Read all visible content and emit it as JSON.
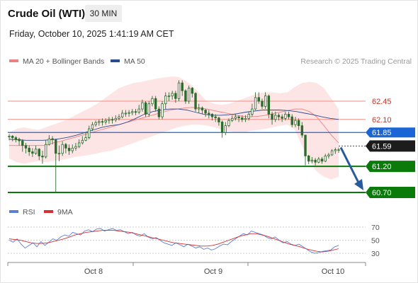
{
  "header": {
    "instrument": "Crude Oil (WTI)",
    "timeframe": "30 MIN",
    "datetime": "Friday, October 10, 2025 1:41:19 AM CET"
  },
  "legend": {
    "bb": "MA 20 + Bollinger Bands",
    "ma50": "MA 50",
    "credit": "Research © 2025 Trading Central",
    "rsi": "RSI",
    "ma9": "9MA"
  },
  "colors": {
    "bb_line": "#f08080",
    "bb_fill": "#fde0e0",
    "ma50": "#2a4b8d",
    "support": "#0a7a0a",
    "resistance": "#f28b82",
    "pivot": "#1a66d6",
    "arrow": "#2a5a9e",
    "candle": "#2e6b2e",
    "rsi": "#5a7fd6",
    "ma9": "#d83030",
    "axis": "#888888"
  },
  "chart_data": [
    {
      "type": "candlestick",
      "title": "Crude Oil (WTI)",
      "timeframe": "30 MIN",
      "x_labels": [
        "Oct 8",
        "Oct 9",
        "Oct 10"
      ],
      "ylim": [
        60.6,
        63.05
      ],
      "levels": [
        {
          "label": "62.45",
          "value": 62.45,
          "kind": "resistance"
        },
        {
          "label": "62.10",
          "value": 62.1,
          "kind": "resistance"
        },
        {
          "label": "61.85",
          "value": 61.85,
          "kind": "pivot"
        },
        {
          "label": "61.59",
          "value": 61.59,
          "kind": "last"
        },
        {
          "label": "61.20",
          "value": 61.2,
          "kind": "support"
        },
        {
          "label": "60.70",
          "value": 60.7,
          "kind": "support"
        }
      ],
      "last_price": 61.59,
      "forecast_arrow": {
        "from": 61.59,
        "to": 60.7,
        "direction": "down"
      },
      "series": [
        {
          "name": "price",
          "close": [
            61.78,
            61.75,
            61.72,
            61.69,
            61.6,
            61.55,
            61.48,
            61.45,
            61.53,
            61.4,
            61.38,
            61.62,
            61.73,
            61.71,
            61.45,
            61.45,
            61.62,
            61.55,
            61.5,
            61.55,
            61.58,
            61.65,
            61.7,
            61.75,
            61.92,
            62.0,
            62.04,
            62.06,
            62.05,
            62.08,
            62.1,
            62.09,
            62.12,
            62.15,
            62.22,
            62.22,
            62.23,
            62.25,
            62.24,
            62.3,
            62.42,
            62.2,
            62.4,
            62.5,
            62.3,
            62.15,
            62.4,
            62.55,
            62.55,
            62.6,
            62.5,
            62.8,
            62.65,
            62.45,
            62.7,
            62.6,
            62.3,
            62.32,
            62.28,
            62.22,
            62.2,
            62.15,
            62.13,
            62.05,
            61.85,
            61.98,
            62.08,
            62.12,
            62.15,
            62.13,
            62.1,
            62.12,
            62.2,
            62.3,
            62.52,
            62.45,
            62.35,
            62.55,
            62.2,
            62.1,
            62.18,
            62.15,
            62.12,
            62.2,
            62.15,
            62.0,
            62.08,
            61.98,
            61.8,
            61.4,
            61.3,
            61.32,
            61.28,
            61.34,
            61.3,
            61.4,
            61.42,
            61.5,
            61.52,
            61.52
          ],
          "high": [
            61.82,
            61.8,
            61.78,
            61.75,
            61.72,
            61.65,
            61.6,
            61.55,
            61.6,
            61.55,
            61.5,
            61.7,
            61.8,
            61.78,
            61.72,
            61.6,
            61.68,
            61.65,
            61.62,
            61.62,
            61.65,
            61.72,
            61.78,
            61.85,
            61.98,
            62.05,
            62.08,
            62.1,
            62.12,
            62.12,
            62.15,
            62.15,
            62.18,
            62.2,
            62.28,
            62.28,
            62.28,
            62.3,
            62.3,
            62.38,
            62.48,
            62.45,
            62.45,
            62.55,
            62.55,
            62.35,
            62.45,
            62.62,
            62.62,
            62.65,
            62.65,
            62.85,
            62.85,
            62.68,
            62.75,
            62.72,
            62.62,
            62.4,
            62.35,
            62.3,
            62.28,
            62.22,
            62.2,
            62.15,
            62.08,
            62.05,
            62.12,
            62.18,
            62.2,
            62.18,
            62.18,
            62.18,
            62.25,
            62.4,
            62.62,
            62.62,
            62.5,
            62.62,
            62.58,
            62.25,
            62.25,
            62.22,
            62.2,
            62.25,
            62.25,
            62.2,
            62.15,
            62.12,
            62.05,
            61.8,
            61.42,
            61.38,
            61.36,
            61.38,
            61.38,
            61.44,
            61.46,
            61.53,
            61.56,
            61.56
          ],
          "low": [
            61.7,
            61.68,
            61.66,
            61.6,
            61.48,
            61.45,
            61.4,
            61.38,
            61.42,
            61.32,
            61.25,
            61.35,
            61.6,
            61.62,
            60.7,
            61.3,
            61.4,
            61.45,
            61.42,
            61.45,
            61.5,
            61.55,
            61.62,
            61.68,
            61.72,
            61.88,
            61.96,
            61.98,
            61.98,
            62.0,
            62.02,
            62.02,
            62.05,
            62.08,
            62.12,
            62.15,
            62.15,
            62.18,
            62.18,
            62.2,
            62.25,
            62.15,
            62.15,
            62.35,
            62.25,
            62.1,
            62.1,
            62.3,
            62.45,
            62.48,
            62.42,
            62.45,
            62.55,
            62.4,
            62.4,
            62.52,
            62.25,
            62.22,
            62.2,
            62.15,
            62.12,
            62.08,
            62.05,
            61.98,
            61.75,
            61.8,
            61.95,
            62.05,
            62.08,
            62.05,
            62.05,
            62.05,
            62.08,
            62.15,
            62.28,
            62.4,
            62.3,
            62.3,
            62.12,
            62.0,
            62.05,
            62.08,
            62.05,
            62.08,
            62.1,
            61.95,
            61.95,
            61.9,
            61.75,
            61.22,
            61.24,
            61.26,
            61.22,
            61.26,
            61.25,
            61.28,
            61.35,
            61.4,
            61.44,
            61.46
          ]
        },
        {
          "name": "MA 20 + Bollinger Bands",
          "middle": [
            61.6,
            61.6,
            61.6,
            61.6,
            61.6,
            61.6,
            61.65,
            61.68,
            61.72,
            61.76,
            61.8,
            61.84,
            61.88,
            61.92,
            61.96,
            62.0,
            62.04,
            62.08,
            62.12,
            62.16,
            62.2,
            62.24,
            62.28,
            62.3,
            62.32,
            62.33,
            62.32,
            62.3,
            62.27,
            62.24,
            62.21,
            62.18,
            62.16,
            62.15,
            62.16,
            62.18,
            62.21,
            62.24,
            62.27,
            62.3,
            62.3,
            62.25,
            62.15,
            61.98,
            61.8,
            61.65
          ],
          "upper": [
            61.85,
            61.92,
            61.95,
            61.92,
            61.9,
            61.95,
            62.0,
            62.05,
            62.1,
            62.18,
            62.25,
            62.32,
            62.4,
            62.5,
            62.6,
            62.7,
            62.75,
            62.8,
            62.82,
            62.85,
            62.88,
            62.9,
            62.92,
            62.92,
            62.85,
            62.75,
            62.6,
            62.45,
            62.4,
            62.38,
            62.4,
            62.45,
            62.5,
            62.55,
            62.6,
            62.62,
            62.62,
            62.6,
            62.62,
            62.72,
            62.8,
            62.82,
            62.8,
            62.7,
            62.5,
            62.3
          ],
          "lower": [
            61.35,
            61.28,
            61.25,
            61.28,
            61.3,
            61.28,
            61.3,
            61.32,
            61.35,
            61.38,
            61.4,
            61.42,
            61.45,
            61.48,
            61.5,
            61.55,
            61.6,
            61.65,
            61.7,
            61.75,
            61.8,
            61.85,
            61.9,
            61.95,
            61.98,
            62.0,
            62.0,
            61.98,
            61.95,
            61.9,
            61.88,
            61.85,
            61.85,
            61.88,
            61.9,
            61.92,
            61.95,
            61.98,
            62.0,
            61.9,
            61.6,
            61.3,
            61.1,
            61.0,
            60.95,
            61.0
          ]
        },
        {
          "name": "MA 50",
          "values": [
            61.72,
            61.71,
            61.7,
            61.7,
            61.7,
            61.71,
            61.73,
            61.76,
            61.8,
            61.85,
            61.9,
            61.95,
            61.98,
            62.0,
            62.05,
            62.12,
            62.2,
            62.25,
            62.28,
            62.3,
            62.3,
            62.28,
            62.24,
            62.2,
            62.18,
            62.18,
            62.19,
            62.21,
            62.24,
            62.26,
            62.28,
            62.28,
            62.28,
            62.27,
            62.25,
            62.22,
            62.19,
            62.15,
            62.12,
            62.1
          ]
        }
      ]
    },
    {
      "type": "line",
      "title": "RSI",
      "yticks": [
        70,
        50,
        30
      ],
      "ylim": [
        25,
        75
      ],
      "series": [
        {
          "name": "RSI",
          "values": [
            50,
            47,
            52,
            44,
            38,
            42,
            46,
            40,
            48,
            42,
            47,
            52,
            50,
            55,
            58,
            56,
            62,
            60,
            58,
            64,
            66,
            63,
            67,
            68,
            64,
            66,
            68,
            65,
            66,
            63,
            60,
            62,
            58,
            56,
            60,
            55,
            52,
            54,
            50,
            46,
            44,
            42,
            46,
            43,
            40,
            44,
            41,
            38,
            40,
            36,
            38,
            35,
            37,
            41,
            44,
            43,
            48,
            52,
            56,
            60,
            58,
            64,
            62,
            60,
            58,
            54,
            52,
            55,
            50,
            46,
            48,
            44,
            42,
            44,
            40,
            36,
            32,
            30,
            31,
            33,
            34,
            35,
            40,
            42
          ]
        },
        {
          "name": "9MA",
          "values": [
            52,
            51,
            50,
            48,
            46,
            45,
            45,
            46,
            48,
            50,
            52,
            55,
            58,
            60,
            62,
            63,
            64,
            65,
            65,
            65,
            64,
            63,
            62,
            60,
            58,
            56,
            54,
            52,
            50,
            48,
            46,
            45,
            44,
            43,
            42,
            41,
            41,
            42,
            44,
            47,
            50,
            53,
            56,
            58,
            60,
            60,
            58,
            56,
            53,
            50,
            47,
            44,
            42,
            40,
            37,
            35,
            33,
            32,
            33,
            35,
            37
          ]
        }
      ]
    }
  ]
}
